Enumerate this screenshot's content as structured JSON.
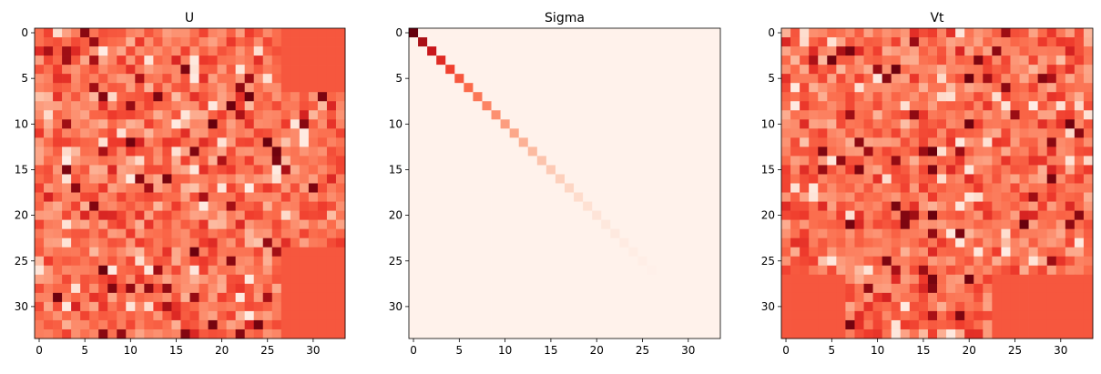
{
  "chart_data": [
    {
      "type": "heatmap",
      "title": "U",
      "xlabel": "",
      "ylabel": "",
      "rows": 34,
      "cols": 34,
      "xlim": [
        -0.5,
        33.5
      ],
      "ylim": [
        33.5,
        -0.5
      ],
      "xticks": [
        0,
        5,
        10,
        15,
        20,
        25,
        30
      ],
      "yticks": [
        0,
        5,
        10,
        15,
        20,
        25,
        30
      ],
      "colormap": "Reds",
      "pattern": "random",
      "fill_value": 0.55,
      "constant_blocks": [
        {
          "rows": [
            0,
            6
          ],
          "cols": [
            27,
            33
          ],
          "value": 0.55
        },
        {
          "rows": [
            24,
            33
          ],
          "cols": [
            27,
            33
          ],
          "value": 0.55
        }
      ],
      "seed": 7
    },
    {
      "type": "heatmap",
      "title": "Sigma",
      "xlabel": "",
      "ylabel": "",
      "rows": 34,
      "cols": 34,
      "xlim": [
        -0.5,
        33.5
      ],
      "ylim": [
        33.5,
        -0.5
      ],
      "xticks": [
        0,
        5,
        10,
        15,
        20,
        25,
        30
      ],
      "yticks": [
        0,
        5,
        10,
        15,
        20,
        25,
        30
      ],
      "colormap": "Reds",
      "pattern": "diagonal",
      "diagonal_length": 27,
      "diagonal_values": [
        1.0,
        0.86,
        0.76,
        0.68,
        0.61,
        0.55,
        0.5,
        0.46,
        0.42,
        0.38,
        0.34,
        0.31,
        0.28,
        0.25,
        0.22,
        0.2,
        0.18,
        0.16,
        0.14,
        0.12,
        0.1,
        0.08,
        0.07,
        0.06,
        0.05,
        0.04,
        0.03
      ],
      "background_value": 0.02
    },
    {
      "type": "heatmap",
      "title": "Vt",
      "xlabel": "",
      "ylabel": "",
      "rows": 34,
      "cols": 34,
      "xlim": [
        -0.5,
        33.5
      ],
      "ylim": [
        33.5,
        -0.5
      ],
      "xticks": [
        0,
        5,
        10,
        15,
        20,
        25,
        30
      ],
      "yticks": [
        0,
        5,
        10,
        15,
        20,
        25,
        30
      ],
      "colormap": "Reds",
      "pattern": "random",
      "fill_value": 0.55,
      "constant_blocks": [
        {
          "rows": [
            27,
            33
          ],
          "cols": [
            0,
            6
          ],
          "value": 0.55
        },
        {
          "rows": [
            27,
            33
          ],
          "cols": [
            23,
            33
          ],
          "value": 0.55
        }
      ],
      "seed": 19
    }
  ]
}
